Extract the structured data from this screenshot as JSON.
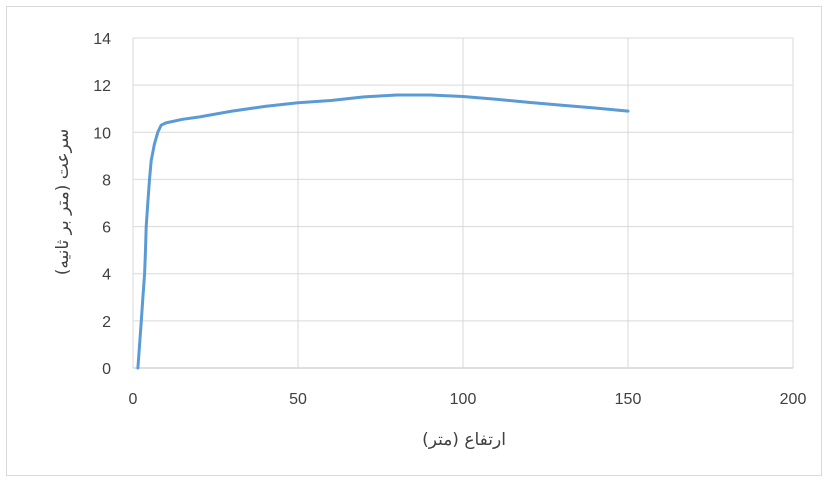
{
  "chart_data": {
    "type": "line",
    "title": "",
    "xlabel": "ارتفاع (متر)",
    "ylabel": "سرعت (متر بر ثانیه)",
    "xlim": [
      0,
      200
    ],
    "ylim": [
      0,
      14
    ],
    "xticks": [
      0,
      50,
      100,
      150,
      200
    ],
    "yticks": [
      0,
      2,
      4,
      6,
      8,
      10,
      12,
      14
    ],
    "grid": true,
    "legend": "none",
    "series": [
      {
        "color": "#5b9bd5",
        "points": [
          [
            1.5,
            0
          ],
          [
            2,
            1
          ],
          [
            2.5,
            2
          ],
          [
            3,
            3
          ],
          [
            3.5,
            4
          ],
          [
            3.8,
            5
          ],
          [
            4,
            6
          ],
          [
            4.5,
            7
          ],
          [
            5,
            8
          ],
          [
            5.5,
            8.8
          ],
          [
            6.5,
            9.5
          ],
          [
            7.5,
            10
          ],
          [
            8.5,
            10.3
          ],
          [
            10,
            10.4
          ],
          [
            15,
            10.55
          ],
          [
            20,
            10.65
          ],
          [
            30,
            10.9
          ],
          [
            40,
            11.1
          ],
          [
            50,
            11.25
          ],
          [
            60,
            11.35
          ],
          [
            70,
            11.5
          ],
          [
            80,
            11.58
          ],
          [
            90,
            11.58
          ],
          [
            100,
            11.52
          ],
          [
            110,
            11.4
          ],
          [
            120,
            11.27
          ],
          [
            130,
            11.15
          ],
          [
            140,
            11.03
          ],
          [
            150,
            10.9
          ]
        ]
      }
    ]
  }
}
